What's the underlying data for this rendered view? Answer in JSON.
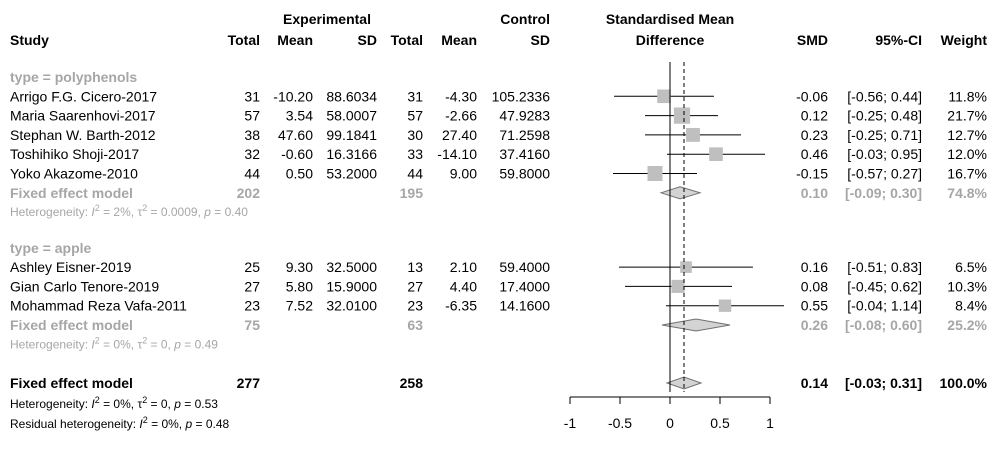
{
  "colors": {
    "text": "#000000",
    "subgroup_text": "#a6a6a6",
    "square": "#bfbfbf",
    "diamond": "#d3d3d3"
  },
  "header": {
    "study": "Study",
    "experimental": "Experimental",
    "control": "Control",
    "smd_title_1": "Standardised Mean",
    "smd_title_2": "Difference",
    "total": "Total",
    "mean": "Mean",
    "sd": "SD",
    "smd": "SMD",
    "ci": "95%-CI",
    "weight": "Weight"
  },
  "chart_data": {
    "type": "forest",
    "xlim": [
      -1,
      1
    ],
    "x_ticks": [
      -1,
      -0.5,
      0,
      0.5,
      1
    ],
    "x_tick_labels": [
      "-1",
      "-0.5",
      "0",
      "0.5",
      "1"
    ],
    "null_line": 0,
    "overall_line": 0.14,
    "groups": [
      {
        "label": "type = polyphenols",
        "studies": [
          {
            "study": "Arrigo F.G. Cicero-2017",
            "e_total": "31",
            "e_mean": "-10.20",
            "e_sd": "88.6034",
            "c_total": "31",
            "c_mean": "-4.30",
            "c_sd": "105.2336",
            "smd": -0.06,
            "lo": -0.56,
            "hi": 0.44,
            "weight": 11.8,
            "smd_text": "-0.06",
            "ci_text": "[-0.56; 0.44]",
            "weight_text": "11.8%"
          },
          {
            "study": "Maria Saarenhovi-2017",
            "e_total": "57",
            "e_mean": "3.54",
            "e_sd": "58.0007",
            "c_total": "57",
            "c_mean": "-2.66",
            "c_sd": "47.9283",
            "smd": 0.12,
            "lo": -0.25,
            "hi": 0.48,
            "weight": 21.7,
            "smd_text": "0.12",
            "ci_text": "[-0.25; 0.48]",
            "weight_text": "21.7%"
          },
          {
            "study": "Stephan W. Barth-2012",
            "e_total": "38",
            "e_mean": "47.60",
            "e_sd": "99.1841",
            "c_total": "30",
            "c_mean": "27.40",
            "c_sd": "71.2598",
            "smd": 0.23,
            "lo": -0.25,
            "hi": 0.71,
            "weight": 12.7,
            "smd_text": "0.23",
            "ci_text": "[-0.25; 0.71]",
            "weight_text": "12.7%"
          },
          {
            "study": "Toshihiko Shoji-2017",
            "e_total": "32",
            "e_mean": "-0.60",
            "e_sd": "16.3166",
            "c_total": "33",
            "c_mean": "-14.10",
            "c_sd": "37.4160",
            "smd": 0.46,
            "lo": -0.03,
            "hi": 0.95,
            "weight": 12.0,
            "smd_text": "0.46",
            "ci_text": "[-0.03; 0.95]",
            "weight_text": "12.0%"
          },
          {
            "study": "Yoko Akazome-2010",
            "e_total": "44",
            "e_mean": "0.50",
            "e_sd": "53.2000",
            "c_total": "44",
            "c_mean": "9.00",
            "c_sd": "59.8000",
            "smd": -0.15,
            "lo": -0.57,
            "hi": 0.27,
            "weight": 16.7,
            "smd_text": "-0.15",
            "ci_text": "[-0.57; 0.27]",
            "weight_text": "16.7%"
          }
        ],
        "fixed": {
          "label": "Fixed effect model",
          "e_total": "202",
          "c_total": "195",
          "smd": 0.1,
          "lo": -0.09,
          "hi": 0.3,
          "smd_text": "0.10",
          "ci_text": "[-0.09; 0.30]",
          "weight_text": "74.8%"
        },
        "heterogeneity": {
          "prefix": "Heterogeneity: ",
          "i2_var": "I",
          "i2_sup": "2",
          "i2_val": " = 2%, ",
          "tau_var": "τ",
          "tau_sup": "2",
          "tau_val": " = 0.0009, ",
          "p_var": "p",
          "p_val": " = 0.40"
        }
      },
      {
        "label": "type = apple",
        "studies": [
          {
            "study": "Ashley Eisner-2019",
            "e_total": "25",
            "e_mean": "9.30",
            "e_sd": "32.5000",
            "c_total": "13",
            "c_mean": "2.10",
            "c_sd": "59.4000",
            "smd": 0.16,
            "lo": -0.51,
            "hi": 0.83,
            "weight": 6.5,
            "smd_text": "0.16",
            "ci_text": "[-0.51; 0.83]",
            "weight_text": "6.5%"
          },
          {
            "study": "Gian Carlo Tenore-2019",
            "e_total": "27",
            "e_mean": "5.80",
            "e_sd": "15.9000",
            "c_total": "27",
            "c_mean": "4.40",
            "c_sd": "17.4000",
            "smd": 0.08,
            "lo": -0.45,
            "hi": 0.62,
            "weight": 10.3,
            "smd_text": "0.08",
            "ci_text": "[-0.45; 0.62]",
            "weight_text": "10.3%"
          },
          {
            "study": "Mohammad Reza Vafa-2011",
            "e_total": "23",
            "e_mean": "7.52",
            "e_sd": "32.0100",
            "c_total": "23",
            "c_mean": "-6.35",
            "c_sd": "14.1600",
            "smd": 0.55,
            "lo": -0.04,
            "hi": 1.14,
            "weight": 8.4,
            "smd_text": "0.55",
            "ci_text": "[-0.04; 1.14]",
            "weight_text": "8.4%"
          }
        ],
        "fixed": {
          "label": "Fixed effect model",
          "e_total": "75",
          "c_total": "63",
          "smd": 0.26,
          "lo": -0.08,
          "hi": 0.6,
          "smd_text": "0.26",
          "ci_text": "[-0.08; 0.60]",
          "weight_text": "25.2%"
        },
        "heterogeneity": {
          "prefix": "Heterogeneity: ",
          "i2_var": "I",
          "i2_sup": "2",
          "i2_val": " = 0%, ",
          "tau_var": "τ",
          "tau_sup": "2",
          "tau_val": " = 0, ",
          "p_var": "p",
          "p_val": " = 0.49"
        }
      }
    ],
    "overall": {
      "label": "Fixed effect model",
      "e_total": "277",
      "c_total": "258",
      "smd": 0.14,
      "lo": -0.03,
      "hi": 0.31,
      "smd_text": "0.14",
      "ci_text": "[-0.03; 0.31]",
      "weight_text": "100.0%",
      "heterogeneity": {
        "prefix": "Heterogeneity: ",
        "i2_var": "I",
        "i2_sup": "2",
        "i2_val": " = 0%, ",
        "tau_var": "τ",
        "tau_sup": "2",
        "tau_val": " = 0, ",
        "p_var": "p",
        "p_val": " = 0.53"
      },
      "residual": {
        "prefix": "Residual heterogeneity: ",
        "i2_var": "I",
        "i2_sup": "2",
        "i2_val": " = 0%, ",
        "p_var": "p",
        "p_val": " = 0.48"
      }
    }
  }
}
